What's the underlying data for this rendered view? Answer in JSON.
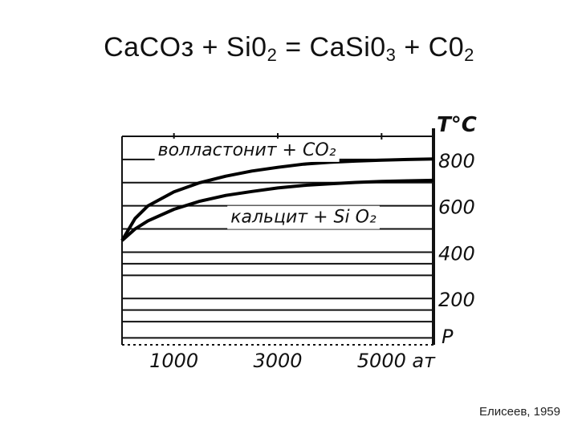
{
  "slide": {
    "title_parts": {
      "p1": "CaCOз + Si0",
      "s1": "2",
      "p2": " = CaSi0",
      "s2": "3",
      "p3": " + C0",
      "s3": "2"
    },
    "citation": "Елисеев, 1959"
  },
  "chart_data": {
    "type": "line",
    "ylabel": "T°C",
    "xlabel": "P",
    "x_unit": "ат",
    "xlim": [
      0,
      6000
    ],
    "ylim": [
      0,
      900
    ],
    "x_tick_labels": [
      "1000",
      "3000",
      "5000"
    ],
    "x_ticks": [
      1000,
      3000,
      5000
    ],
    "y_ticks": [
      200,
      400,
      600,
      800
    ],
    "y_tick_labels": [
      "200",
      "400",
      "600",
      "800"
    ],
    "grid": true,
    "hlines": [
      30,
      100,
      150,
      200,
      300,
      350,
      400,
      500,
      600,
      700,
      800,
      900
    ],
    "region_labels": [
      {
        "text": "волластонит + CO₂",
        "x": 1000,
        "y": 845
      },
      {
        "text": "кальцит + Si O₂",
        "x": 2400,
        "y": 555
      }
    ],
    "series": [
      {
        "x": [
          0,
          250,
          500,
          1000,
          1500,
          2000,
          2500,
          3000,
          3500,
          4000,
          4500,
          5000,
          5500,
          6000
        ],
        "y": [
          450,
          545,
          600,
          660,
          700,
          728,
          750,
          766,
          780,
          788,
          793,
          797,
          800,
          802
        ]
      },
      {
        "x": [
          0,
          250,
          500,
          1000,
          1500,
          2000,
          2500,
          3000,
          3500,
          4000,
          4500,
          5000,
          5500,
          6000
        ],
        "y": [
          450,
          500,
          535,
          585,
          620,
          645,
          662,
          677,
          688,
          695,
          701,
          705,
          708,
          710
        ]
      }
    ]
  }
}
